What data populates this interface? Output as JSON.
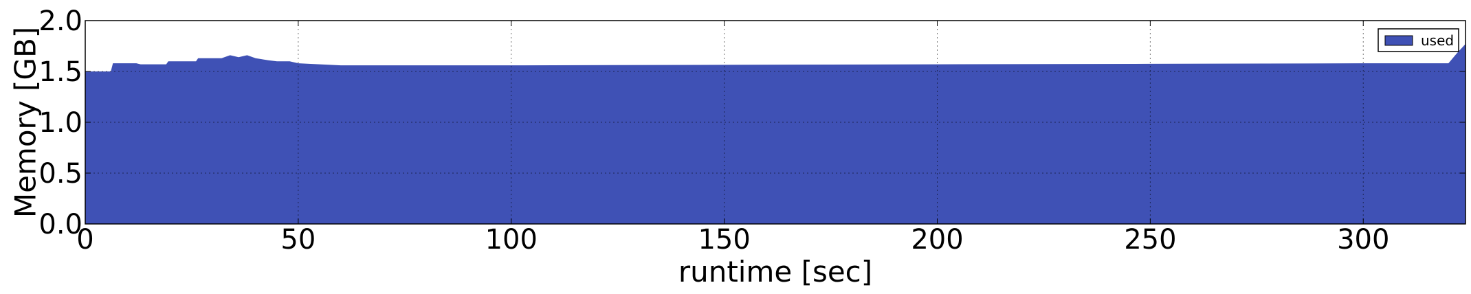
{
  "chart_data": {
    "type": "area",
    "xlabel": "runtime [sec]",
    "ylabel": "Memory [GB]",
    "xlim": [
      0,
      324
    ],
    "ylim": [
      0.0,
      2.0
    ],
    "xticks": [
      0,
      50,
      100,
      150,
      200,
      250,
      300
    ],
    "xtick_labels": [
      "0",
      "50",
      "100",
      "150",
      "200",
      "250",
      "300"
    ],
    "yticks": [
      0.0,
      0.5,
      1.0,
      1.5,
      2.0
    ],
    "ytick_labels": [
      "0.0",
      "0.5",
      "1.0",
      "1.5",
      "2.0"
    ],
    "grid": true,
    "legend_position": "top-right",
    "series": [
      {
        "name": "used",
        "color": "#3f51b5",
        "x": [
          0,
          6,
          6.5,
          12,
          13,
          19,
          19.5,
          26,
          26.5,
          32,
          34,
          36,
          38,
          40,
          43,
          45,
          48,
          50,
          55,
          60,
          70,
          80,
          100,
          150,
          200,
          250,
          300,
          320,
          322,
          324
        ],
        "y": [
          1.5,
          1.5,
          1.58,
          1.58,
          1.57,
          1.57,
          1.6,
          1.6,
          1.63,
          1.63,
          1.66,
          1.64,
          1.66,
          1.63,
          1.61,
          1.6,
          1.6,
          1.58,
          1.57,
          1.56,
          1.56,
          1.56,
          1.56,
          1.565,
          1.57,
          1.575,
          1.58,
          1.58,
          1.68,
          1.77
        ]
      }
    ]
  }
}
